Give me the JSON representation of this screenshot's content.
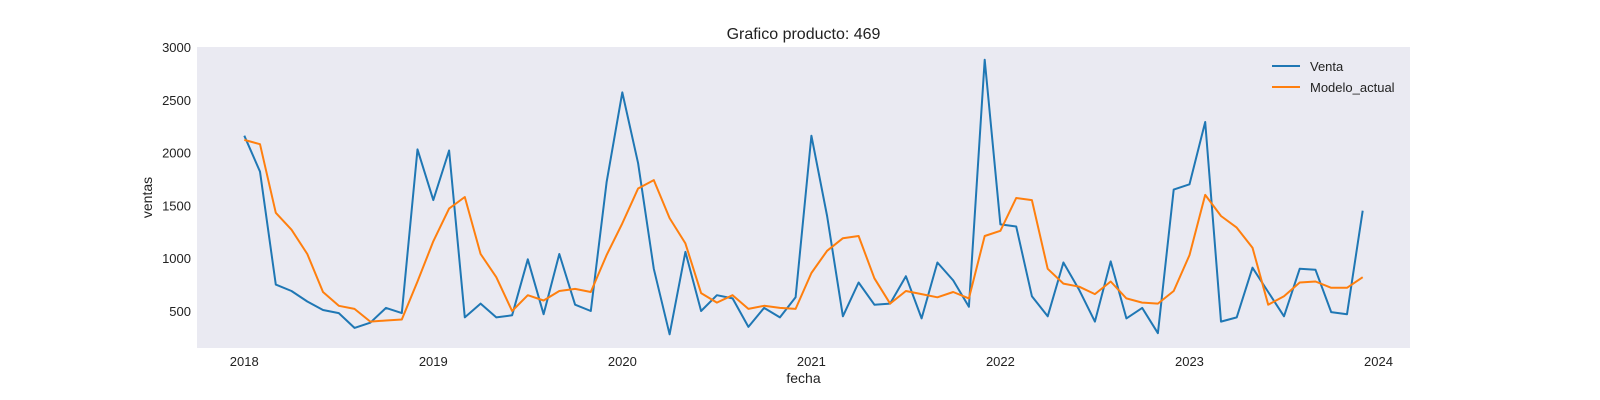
{
  "chart_data": {
    "type": "line",
    "title": "Grafico producto: 469",
    "xlabel": "fecha",
    "ylabel": "ventas",
    "x_start": "2018-01",
    "x_tick_labels": [
      "2018",
      "2019",
      "2020",
      "2021",
      "2022",
      "2023",
      "2024"
    ],
    "x_tick_values": [
      "2018-01",
      "2019-01",
      "2020-01",
      "2021-01",
      "2022-01",
      "2023-01",
      "2024-01"
    ],
    "xlim": [
      "2017-10",
      "2024-03"
    ],
    "ylim": [
      150,
      3000
    ],
    "y_ticks": [
      500,
      1000,
      1500,
      2000,
      2500,
      3000
    ],
    "grid": false,
    "legend_position": "top-right",
    "series": [
      {
        "name": "Venta",
        "color": "#1f77b4",
        "values": [
          2160,
          1820,
          750,
          690,
          590,
          510,
          480,
          340,
          390,
          530,
          480,
          2030,
          1550,
          2020,
          440,
          570,
          440,
          460,
          990,
          470,
          1040,
          560,
          500,
          1720,
          2570,
          1900,
          900,
          280,
          1060,
          500,
          650,
          620,
          350,
          530,
          440,
          630,
          2160,
          1400,
          450,
          770,
          560,
          570,
          830,
          430,
          960,
          790,
          540,
          2880,
          1320,
          1300,
          640,
          450,
          960,
          700,
          400,
          970,
          430,
          530,
          290,
          1650,
          1700,
          2290,
          400,
          440,
          910,
          680,
          450,
          900,
          890,
          490,
          470,
          1450
        ]
      },
      {
        "name": "Modelo_actual",
        "color": "#ff7f0e",
        "values": [
          2120,
          2080,
          1430,
          1270,
          1040,
          680,
          550,
          520,
          400,
          410,
          420,
          780,
          1160,
          1470,
          1580,
          1040,
          820,
          500,
          650,
          600,
          690,
          710,
          680,
          1030,
          1330,
          1660,
          1740,
          1380,
          1140,
          670,
          580,
          650,
          520,
          550,
          530,
          520,
          860,
          1070,
          1190,
          1210,
          810,
          570,
          690,
          660,
          630,
          680,
          620,
          1210,
          1260,
          1570,
          1550,
          900,
          760,
          730,
          660,
          780,
          620,
          580,
          570,
          690,
          1030,
          1600,
          1400,
          1290,
          1100,
          560,
          640,
          770,
          780,
          720,
          720,
          820
        ]
      }
    ]
  }
}
